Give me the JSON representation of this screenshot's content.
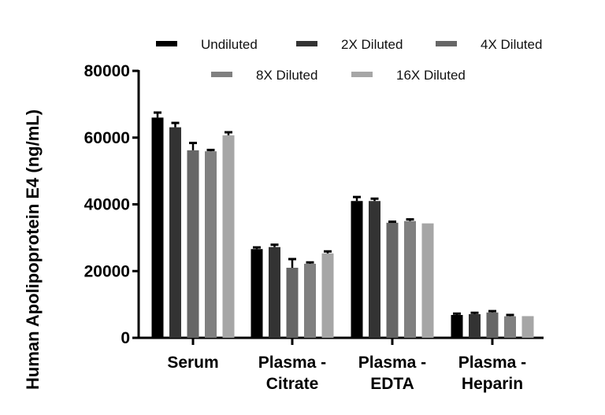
{
  "chart_data": {
    "type": "bar",
    "title": "",
    "xlabel": "",
    "ylabel": "Human Apolipoprotein E4 (ng/mL)",
    "ylim": [
      0,
      80000
    ],
    "yticks": [
      "0",
      "20000",
      "40000",
      "60000",
      "80000"
    ],
    "ytick_values": [
      0,
      20000,
      40000,
      60000,
      80000
    ],
    "grid": false,
    "legend_position": "top",
    "categories": [
      [
        "Serum"
      ],
      [
        "Plasma -",
        "Citrate"
      ],
      [
        "Plasma -",
        "EDTA"
      ],
      [
        "Plasma -",
        "Heparin"
      ]
    ],
    "series": [
      {
        "name": "Undiluted",
        "color": "#000000",
        "values": [
          66000,
          26600,
          41000,
          6850
        ],
        "errors": [
          1500,
          500,
          1200,
          400
        ]
      },
      {
        "name": "2X Diluted",
        "color": "#333333",
        "values": [
          63100,
          27200,
          41000,
          7100
        ],
        "errors": [
          1300,
          700,
          700,
          400
        ]
      },
      {
        "name": "4X Diluted",
        "color": "#666666",
        "values": [
          56200,
          21000,
          34500,
          7600
        ],
        "errors": [
          2200,
          2600,
          300,
          400
        ]
      },
      {
        "name": "8X Diluted",
        "color": "#808080",
        "values": [
          55900,
          22200,
          35000,
          6450
        ],
        "errors": [
          400,
          400,
          500,
          400
        ]
      },
      {
        "name": "16X Diluted",
        "color": "#a6a6a6",
        "values": [
          60700,
          25300,
          34300,
          6500
        ],
        "errors": [
          900,
          600,
          0,
          0
        ]
      }
    ]
  }
}
